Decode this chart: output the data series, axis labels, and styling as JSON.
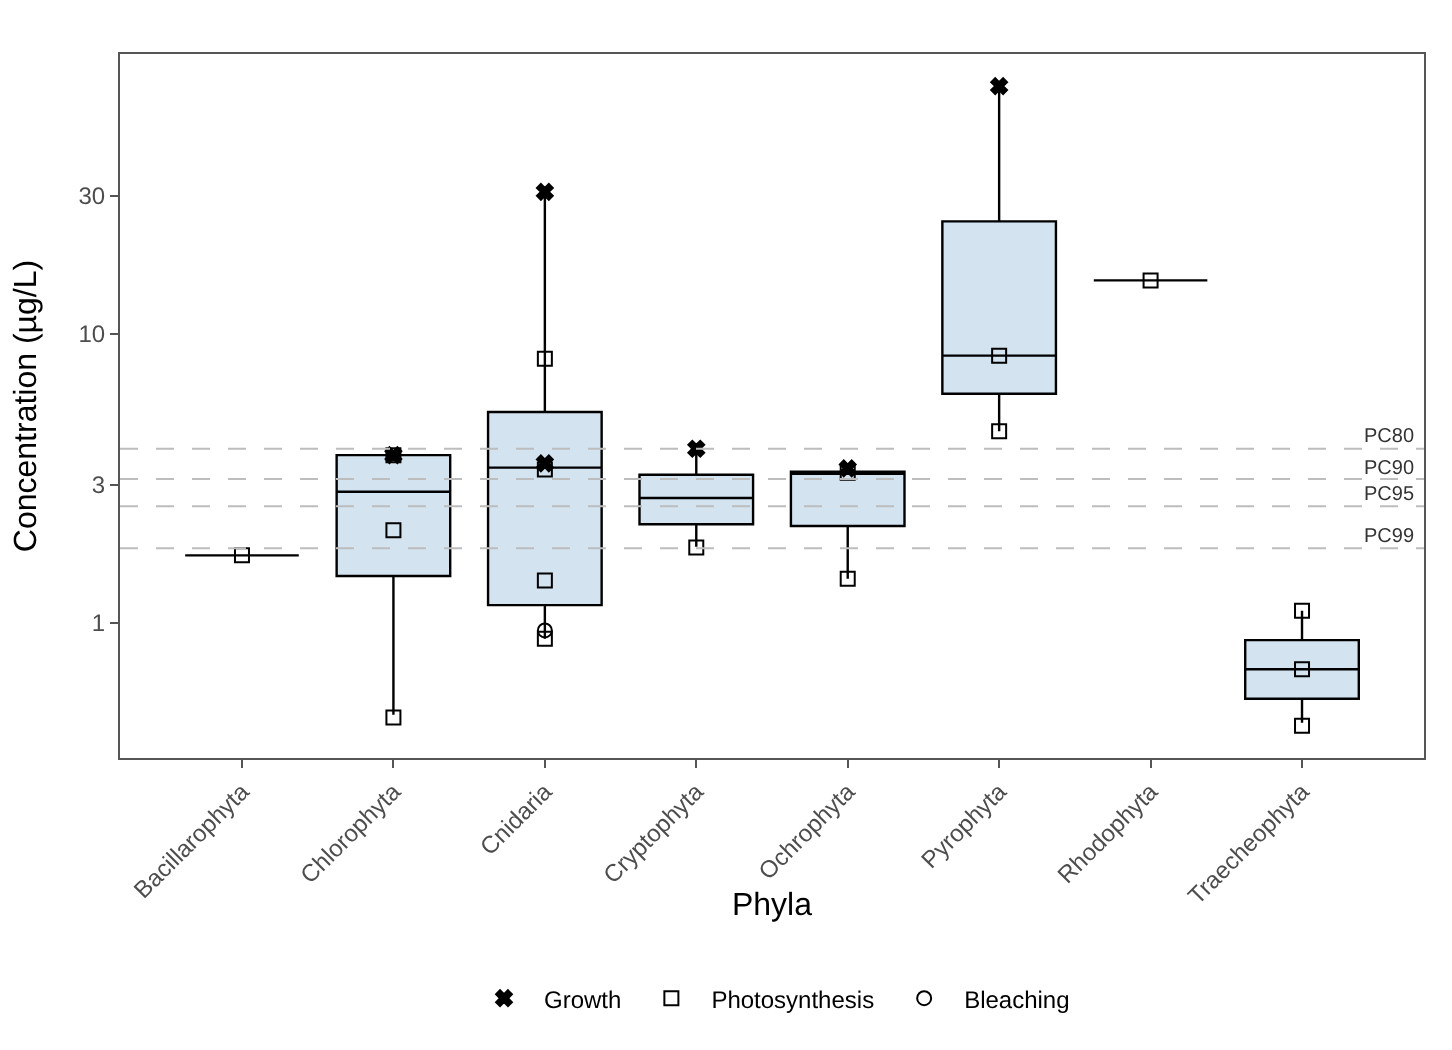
{
  "chart_data": {
    "type": "box",
    "xlabel": "Phyla",
    "ylabel": "Concentration (µg/L)",
    "log": true,
    "grid": false,
    "legend": "bottom",
    "ylim": [
      0.34,
      93
    ],
    "yticks": [
      1,
      3,
      10,
      30
    ],
    "categories": [
      "Bacillarophyta",
      "Chlorophyta",
      "Cnidaria",
      "Cryptophyta",
      "Ochrophyta",
      "Pyrophyta",
      "Rhodophyta",
      "Traecheophyta"
    ],
    "colors": [
      "#000000",
      "#d3e3f0",
      "#d3e3f0",
      "#d3e3f0",
      "#d3e3f0",
      "#d3e3f0",
      "#000000",
      "#d3e3f0"
    ],
    "boxes": [
      {
        "low": 1.71,
        "q1": 1.71,
        "median": 1.71,
        "q3": 1.71,
        "high": 1.71
      },
      {
        "low": 0.48,
        "q1": 1.45,
        "median": 2.84,
        "q3": 3.8,
        "high": 3.8
      },
      {
        "low": 0.88,
        "q1": 1.15,
        "median": 3.44,
        "q3": 5.36,
        "high": 31
      },
      {
        "low": 1.83,
        "q1": 2.19,
        "median": 2.7,
        "q3": 3.25,
        "high": 4.0
      },
      {
        "low": 1.42,
        "q1": 2.16,
        "median": 3.33,
        "q3": 3.33,
        "high": 3.33
      },
      {
        "low": 4.6,
        "q1": 6.2,
        "median": 8.4,
        "q3": 24.5,
        "high": 72
      },
      {
        "low": 15.3,
        "q1": 15.3,
        "median": 15.3,
        "q3": 15.3,
        "high": 15.3
      },
      {
        "low": 0.45,
        "q1": 0.545,
        "median": 0.69,
        "q3": 0.87,
        "high": 1.1
      }
    ],
    "series": [
      {
        "name": "Growth",
        "type": "scatter",
        "marker": "cross",
        "color": "#000000",
        "x": [
          "Chlorophyta",
          "Cnidaria",
          "Cnidaria",
          "Cryptophyta",
          "Ochrophyta",
          "Pyrophyta"
        ],
        "values": [
          3.8,
          31,
          3.56,
          4.0,
          3.42,
          72
        ]
      },
      {
        "name": "Photosynthesis",
        "type": "scatter",
        "marker": "square",
        "color": "#000000",
        "x": [
          "Bacillarophyta",
          "Chlorophyta",
          "Chlorophyta",
          "Chlorophyta",
          "Cnidaria",
          "Cnidaria",
          "Cnidaria",
          "Cnidaria",
          "Cryptophyta",
          "Ochrophyta",
          "Ochrophyta",
          "Pyrophyta",
          "Pyrophyta",
          "Rhodophyta",
          "Traecheophyta",
          "Traecheophyta",
          "Traecheophyta"
        ],
        "values": [
          1.71,
          3.8,
          2.09,
          0.47,
          3.39,
          8.2,
          1.4,
          0.88,
          1.82,
          3.3,
          1.42,
          8.4,
          4.6,
          15.3,
          1.1,
          0.69,
          0.44
        ]
      },
      {
        "name": "Bleaching",
        "type": "scatter",
        "marker": "circle",
        "color": "#000000",
        "x": [
          "Cnidaria"
        ],
        "values": [
          0.94
        ]
      }
    ],
    "ref_lines": [
      {
        "axis": "y",
        "value": 4.0,
        "label": "PC80",
        "color": "#bdbdbd",
        "line_style": "dashed"
      },
      {
        "axis": "y",
        "value": 3.14,
        "label": "PC90",
        "color": "#bdbdbd",
        "line_style": "dashed"
      },
      {
        "axis": "y",
        "value": 2.53,
        "label": "PC95",
        "color": "#bdbdbd",
        "line_style": "dashed"
      },
      {
        "axis": "y",
        "value": 1.81,
        "label": "PC99",
        "color": "#bdbdbd",
        "line_style": "dashed"
      }
    ]
  }
}
